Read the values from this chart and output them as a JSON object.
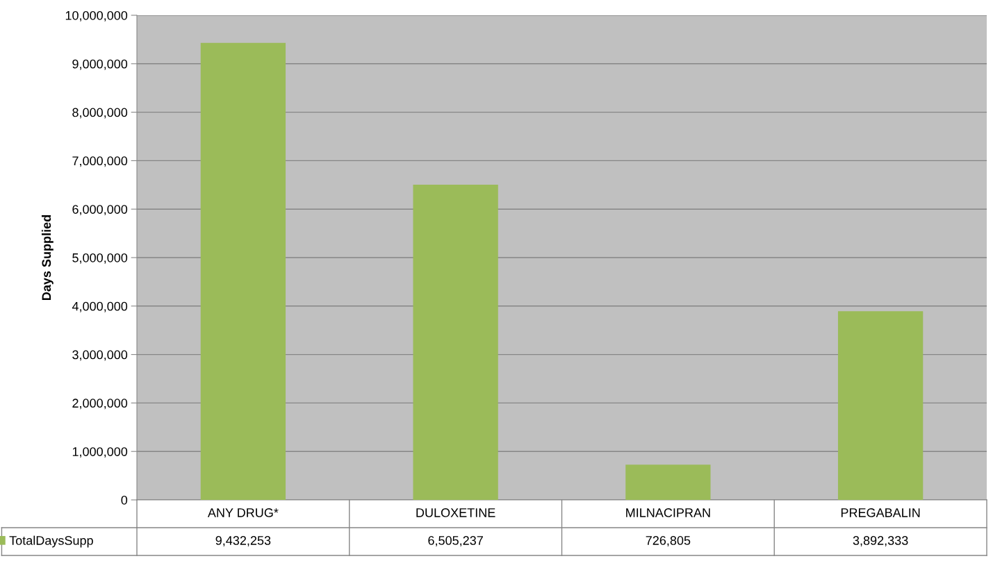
{
  "chart_data": {
    "type": "bar",
    "ylabel": "Days Supplied",
    "categories": [
      "ANY DRUG*",
      "DULOXETINE",
      "MILNACIPRAN",
      "PREGABALIN"
    ],
    "series": [
      {
        "name": "TotalDaysSupp",
        "color": "#9bbb59",
        "values": [
          9432253,
          6505237,
          726805,
          3892333
        ],
        "value_labels": [
          "9,432,253",
          "6,505,237",
          "726,805",
          "3,892,333"
        ]
      }
    ],
    "legend": "bottom left",
    "grid": "y",
    "ylim": [
      0,
      10000000
    ],
    "yticks": [
      0,
      {
        "value": 1000000,
        "label": "1,000,000"
      },
      {
        "value": 2000000,
        "label": "2,000,000"
      },
      {
        "value": 3000000,
        "label": "3,000,000"
      },
      {
        "value": 4000000,
        "label": "4,000,000"
      },
      {
        "value": 5000000,
        "label": "5,000,000"
      },
      {
        "value": 6000000,
        "label": "6,000,000"
      },
      {
        "value": 7000000,
        "label": "7,000,000"
      },
      {
        "value": 8000000,
        "label": "8,000,000"
      },
      {
        "value": 9000000,
        "label": "9,000,000"
      },
      {
        "value": 10000000,
        "label": "10,000,000"
      }
    ]
  }
}
